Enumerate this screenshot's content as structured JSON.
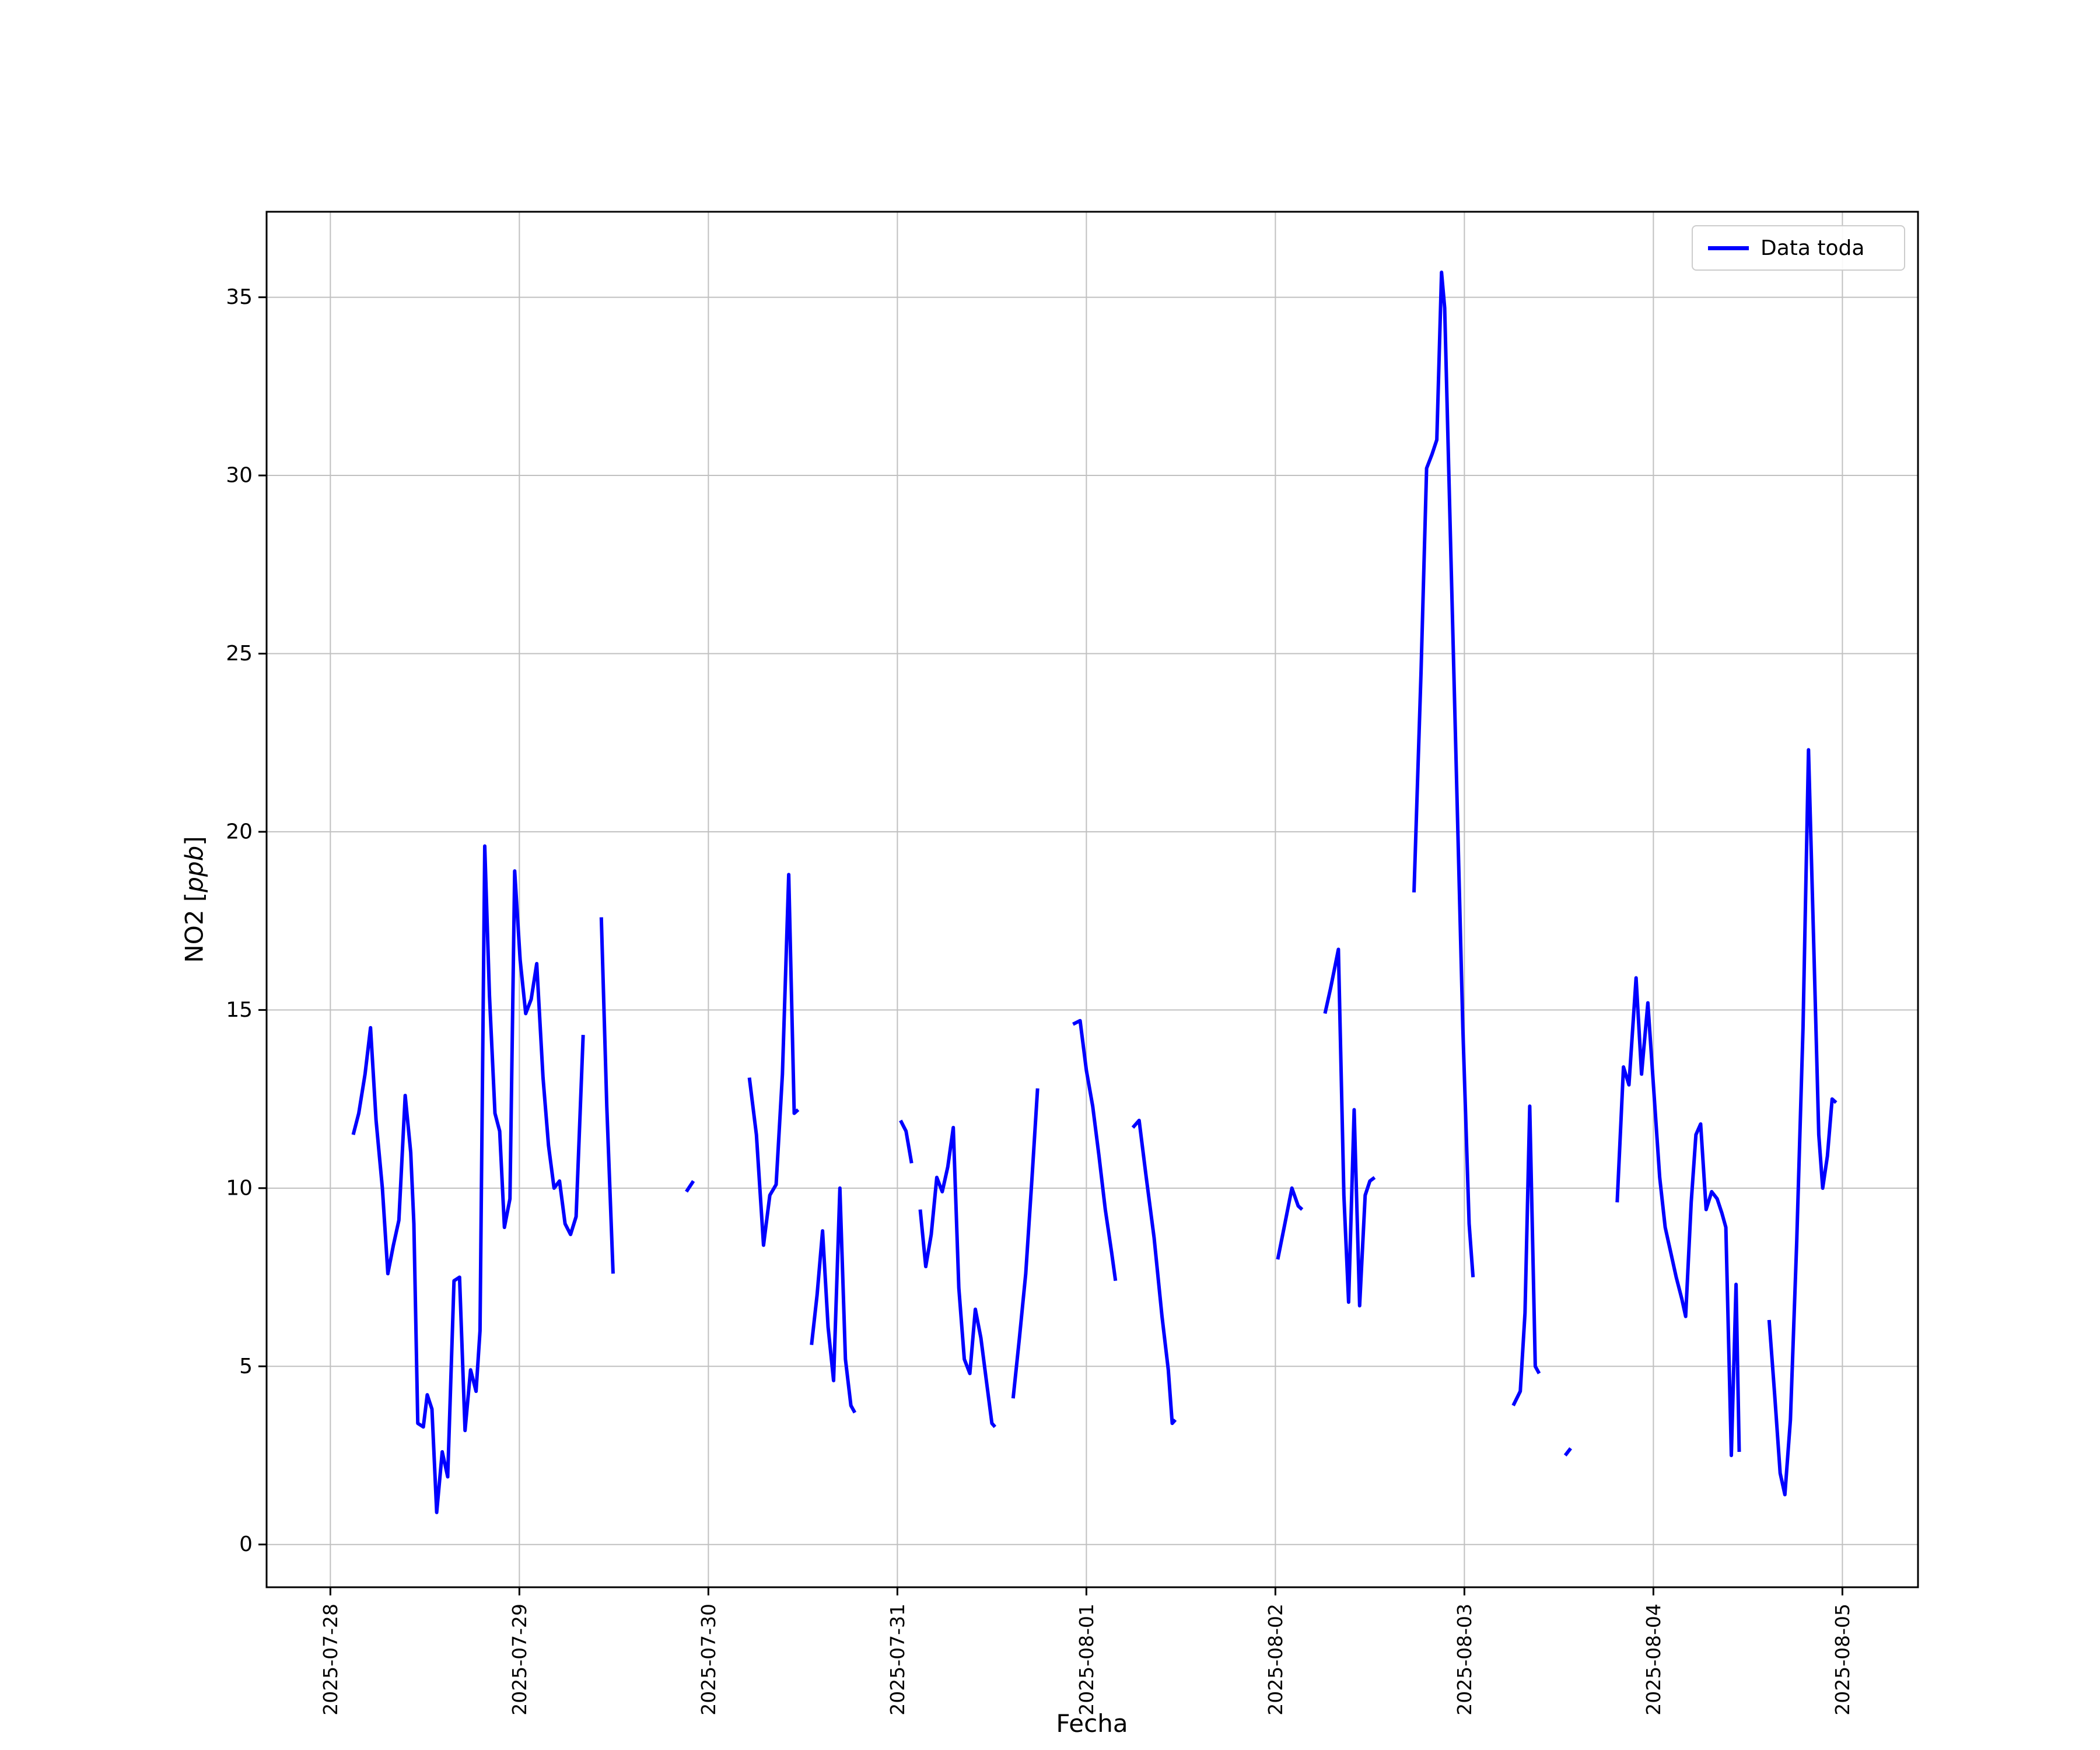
{
  "chart_data": {
    "type": "line",
    "title": "",
    "xlabel": "Fecha",
    "ylabel": "NO2 [ppb]",
    "ylabel_parts": {
      "prefix": "NO2 [",
      "italic": "ppb",
      "suffix": "]"
    },
    "legend_label": "Data toda",
    "legend_position": "upper right",
    "line_color": "#0000ff",
    "grid": true,
    "grid_color": "#c0c0c0",
    "background_color": "#ffffff",
    "x_unit": "hours since 2025-07-28 00:00",
    "xlim_hours": [
      -8.1,
      201.6
    ],
    "ylim": [
      -1.2,
      37.4
    ],
    "y_ticks": [
      0,
      5,
      10,
      15,
      20,
      25,
      30,
      35
    ],
    "x_ticks": [
      {
        "hours": 0,
        "label": "2025-07-28"
      },
      {
        "hours": 24,
        "label": "2025-07-29"
      },
      {
        "hours": 48,
        "label": "2025-07-30"
      },
      {
        "hours": 72,
        "label": "2025-07-31"
      },
      {
        "hours": 96,
        "label": "2025-08-01"
      },
      {
        "hours": 120,
        "label": "2025-08-02"
      },
      {
        "hours": 144,
        "label": "2025-08-03"
      },
      {
        "hours": 168,
        "label": "2025-08-04"
      },
      {
        "hours": 192,
        "label": "2025-08-05"
      }
    ],
    "segments": [
      [
        [
          2.9,
          11.5
        ],
        [
          3.6,
          12.1
        ],
        [
          4.4,
          13.2
        ],
        [
          5.1,
          14.5
        ],
        [
          5.8,
          11.9
        ],
        [
          6.6,
          10.0
        ],
        [
          7.3,
          7.6
        ],
        [
          8.0,
          8.4
        ],
        [
          8.7,
          9.1
        ],
        [
          9.5,
          12.6
        ],
        [
          10.2,
          11.0
        ],
        [
          10.6,
          9.0
        ],
        [
          11.1,
          3.4
        ],
        [
          11.8,
          3.3
        ],
        [
          12.3,
          4.2
        ],
        [
          12.9,
          3.8
        ],
        [
          13.5,
          0.9
        ],
        [
          14.2,
          2.6
        ],
        [
          14.9,
          1.9
        ],
        [
          15.7,
          7.4
        ],
        [
          16.4,
          7.5
        ],
        [
          17.1,
          3.2
        ],
        [
          17.8,
          4.9
        ],
        [
          18.5,
          4.3
        ],
        [
          19.0,
          6.0
        ],
        [
          19.6,
          19.6
        ],
        [
          20.2,
          15.4
        ],
        [
          20.9,
          12.1
        ],
        [
          21.5,
          11.6
        ],
        [
          22.1,
          8.9
        ],
        [
          22.8,
          9.7
        ],
        [
          23.4,
          18.9
        ],
        [
          24.1,
          16.4
        ],
        [
          24.8,
          14.9
        ],
        [
          25.5,
          15.3
        ],
        [
          26.2,
          16.3
        ],
        [
          27.0,
          13.1
        ],
        [
          27.7,
          11.2
        ],
        [
          28.4,
          10.0
        ],
        [
          29.1,
          10.2
        ],
        [
          29.8,
          9.0
        ],
        [
          30.5,
          8.7
        ],
        [
          31.2,
          9.2
        ],
        [
          32.1,
          14.3
        ]
      ],
      [
        [
          34.4,
          17.6
        ],
        [
          35.1,
          12.3
        ],
        [
          35.9,
          7.6
        ]
      ],
      [
        [
          45.2,
          9.9
        ],
        [
          46.1,
          10.2
        ]
      ],
      [
        [
          53.2,
          13.1
        ],
        [
          54.1,
          11.5
        ],
        [
          55.0,
          8.4
        ],
        [
          55.8,
          9.8
        ],
        [
          56.6,
          10.1
        ],
        [
          57.4,
          13.2
        ],
        [
          58.2,
          18.8
        ],
        [
          58.9,
          12.1
        ],
        [
          59.4,
          12.2
        ]
      ],
      [
        [
          61.1,
          5.6
        ],
        [
          61.8,
          7.0
        ],
        [
          62.5,
          8.8
        ],
        [
          63.2,
          6.1
        ],
        [
          63.9,
          4.6
        ],
        [
          64.7,
          10.0
        ],
        [
          65.4,
          5.2
        ],
        [
          66.1,
          3.9
        ],
        [
          66.6,
          3.7
        ]
      ],
      [
        [
          72.4,
          11.9
        ],
        [
          73.1,
          11.6
        ],
        [
          73.8,
          10.7
        ]
      ],
      [
        [
          74.9,
          9.4
        ],
        [
          75.6,
          7.8
        ],
        [
          76.3,
          8.7
        ],
        [
          77.0,
          10.3
        ],
        [
          77.7,
          9.9
        ],
        [
          78.4,
          10.6
        ],
        [
          79.1,
          11.7
        ],
        [
          79.8,
          7.2
        ],
        [
          80.5,
          5.2
        ],
        [
          81.2,
          4.8
        ],
        [
          81.9,
          6.6
        ],
        [
          82.6,
          5.8
        ],
        [
          83.3,
          4.6
        ],
        [
          84.0,
          3.4
        ],
        [
          84.4,
          3.3
        ]
      ],
      [
        [
          86.7,
          4.1
        ],
        [
          87.5,
          5.8
        ],
        [
          88.3,
          7.6
        ],
        [
          89.1,
          10.3
        ],
        [
          89.8,
          12.8
        ]
      ],
      [
        [
          94.3,
          14.6
        ],
        [
          95.2,
          14.7
        ],
        [
          96.0,
          13.3
        ],
        [
          96.8,
          12.3
        ],
        [
          97.6,
          10.9
        ],
        [
          98.4,
          9.4
        ],
        [
          99.2,
          8.2
        ],
        [
          99.7,
          7.4
        ]
      ],
      [
        [
          101.9,
          11.7
        ],
        [
          102.7,
          11.9
        ],
        [
          103.6,
          10.3
        ],
        [
          104.6,
          8.6
        ],
        [
          105.6,
          6.4
        ],
        [
          106.4,
          4.9
        ],
        [
          106.9,
          3.4
        ],
        [
          107.3,
          3.5
        ]
      ],
      [
        [
          120.3,
          8.0
        ],
        [
          121.2,
          9.0
        ],
        [
          122.1,
          10.0
        ],
        [
          122.9,
          9.5
        ],
        [
          123.4,
          9.4
        ]
      ],
      [
        [
          126.3,
          14.9
        ],
        [
          127.0,
          15.6
        ],
        [
          128.0,
          16.7
        ],
        [
          128.7,
          9.8
        ],
        [
          129.3,
          6.8
        ],
        [
          130.0,
          12.2
        ],
        [
          130.7,
          6.7
        ],
        [
          131.4,
          9.8
        ],
        [
          132.0,
          10.2
        ],
        [
          132.6,
          10.3
        ]
      ],
      [
        [
          137.6,
          18.3
        ],
        [
          138.5,
          24.5
        ],
        [
          139.2,
          30.2
        ],
        [
          139.9,
          30.6
        ],
        [
          140.5,
          31.0
        ],
        [
          141.1,
          35.7
        ],
        [
          141.5,
          34.7
        ],
        [
          142.2,
          28.5
        ],
        [
          143.0,
          21.5
        ],
        [
          143.8,
          14.5
        ],
        [
          144.6,
          9.0
        ],
        [
          145.1,
          7.5
        ]
      ],
      [
        [
          150.2,
          3.9
        ],
        [
          151.1,
          4.3
        ],
        [
          151.7,
          6.5
        ],
        [
          152.3,
          12.3
        ],
        [
          153.0,
          5.0
        ],
        [
          153.5,
          4.8
        ]
      ],
      [
        [
          156.8,
          2.5
        ],
        [
          157.5,
          2.7
        ]
      ],
      [
        [
          163.4,
          9.6
        ],
        [
          164.2,
          13.4
        ],
        [
          164.9,
          12.9
        ],
        [
          165.8,
          15.9
        ],
        [
          166.5,
          13.2
        ],
        [
          167.3,
          15.2
        ],
        [
          168.0,
          12.9
        ],
        [
          168.8,
          10.3
        ],
        [
          169.5,
          8.9
        ],
        [
          170.2,
          8.2
        ],
        [
          170.9,
          7.5
        ],
        [
          171.6,
          6.9
        ],
        [
          172.1,
          6.4
        ],
        [
          172.8,
          9.6
        ],
        [
          173.4,
          11.5
        ],
        [
          174.0,
          11.8
        ],
        [
          174.7,
          9.4
        ],
        [
          175.4,
          9.9
        ],
        [
          176.1,
          9.7
        ],
        [
          176.7,
          9.3
        ],
        [
          177.2,
          8.9
        ],
        [
          177.9,
          2.5
        ],
        [
          178.5,
          7.3
        ],
        [
          178.9,
          2.6
        ]
      ],
      [
        [
          182.7,
          6.3
        ],
        [
          183.4,
          4.2
        ],
        [
          184.1,
          2.0
        ],
        [
          184.7,
          1.4
        ],
        [
          185.4,
          3.5
        ],
        [
          186.2,
          8.5
        ],
        [
          187.0,
          14.5
        ],
        [
          187.7,
          22.3
        ],
        [
          188.4,
          16.5
        ],
        [
          189.0,
          11.5
        ],
        [
          189.5,
          10.0
        ],
        [
          190.1,
          10.9
        ],
        [
          190.7,
          12.5
        ],
        [
          191.2,
          12.4
        ]
      ]
    ]
  }
}
